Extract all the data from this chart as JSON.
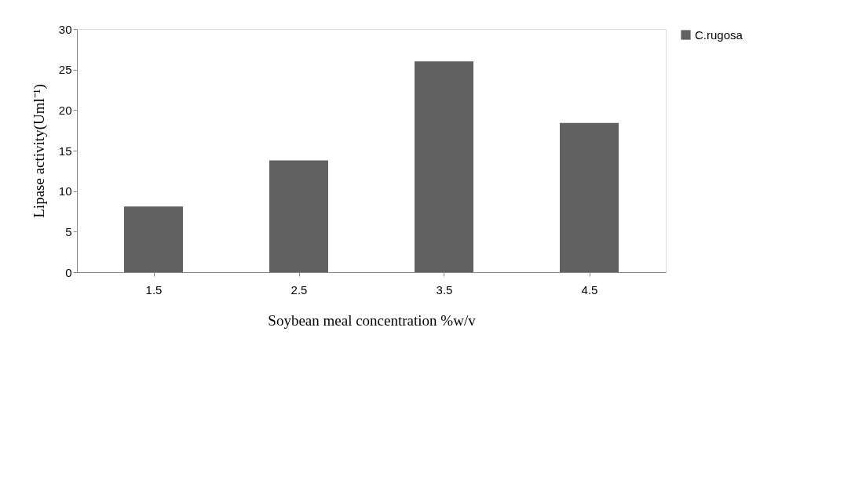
{
  "chart_data": {
    "type": "bar",
    "xlabel": "Soybean meal concentration %w/v",
    "ylabel": "Lipase activity(Uml⁻¹)",
    "categories": [
      "1.5",
      "2.5",
      "3.5",
      "4.5"
    ],
    "series": [
      {
        "name": "C.rugosa",
        "color": "#616161",
        "values": [
          8.1,
          13.8,
          26.0,
          18.4
        ]
      }
    ],
    "ylim": [
      0,
      30
    ],
    "yticks": [
      0,
      5,
      10,
      15,
      20,
      25,
      30
    ],
    "grid": false,
    "legend": "right"
  }
}
